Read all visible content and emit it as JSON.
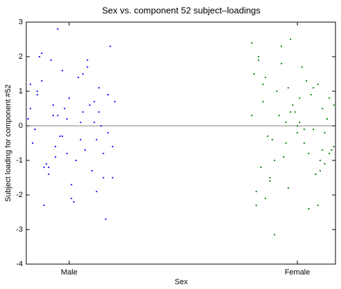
{
  "chart_data": {
    "type": "scatter",
    "title": "Sex vs. component 52 subject–loadings",
    "x_label": "Sex",
    "y_label": "Subject loading for component #52",
    "xlim": [
      0.812,
      2.167
    ],
    "xticks": [
      {
        "value": 1,
        "label": "Male"
      },
      {
        "value": 2,
        "label": "Female"
      }
    ],
    "ylim": [
      -4,
      3
    ],
    "yticks": [
      -4,
      -3,
      -2,
      -1,
      0,
      1,
      2,
      3
    ],
    "hline": 0,
    "series": [
      {
        "color": "#0000ff",
        "x": [
          0.83,
          0.95,
          1.12,
          0.88,
          1.05,
          0.91,
          1.18,
          0.99,
          0.86,
          1.08,
          1.15,
          0.93,
          1.02,
          0.85,
          1.11,
          0.97,
          1.19,
          0.89,
          1.06,
          0.94,
          1.13,
          0.82,
          1.01,
          1.09,
          0.87,
          1.16,
          0.96,
          1.04,
          0.9,
          1.14,
          0.84,
          1.0,
          1.1,
          0.92,
          1.17,
          0.98,
          1.07,
          0.86,
          1.12,
          0.95,
          1.03,
          0.88,
          1.19,
          0.93,
          1.05,
          0.83,
          1.15,
          0.99,
          1.08,
          0.91,
          1.13,
          0.85,
          1.01,
          1.17,
          0.94,
          1.06,
          0.89,
          1.11,
          0.97,
          1.2
        ],
        "values": [
          0.5,
          2.8,
          -0.4,
          1.3,
          0.1,
          -1.2,
          2.3,
          -0.8,
          0.9,
          1.9,
          -1.5,
          0.3,
          -2.2,
          -0.1,
          0.7,
          1.6,
          -0.6,
          -2.3,
          0.4,
          -0.9,
          1.1,
          0.2,
          -1.7,
          0.6,
          2.0,
          -2.7,
          -0.3,
          1.4,
          -1.1,
          0.0,
          -0.5,
          0.8,
          -1.3,
          1.9,
          -0.2,
          0.5,
          -0.7,
          1.0,
          -1.9,
          0.3,
          -1.0,
          2.1,
          -1.5,
          0.6,
          -0.4,
          1.2,
          -0.8,
          0.2,
          1.7,
          -1.4,
          0.4,
          -0.1,
          -2.1,
          0.9,
          -0.6,
          1.5,
          -1.2,
          0.1,
          -0.3,
          0.7
        ]
      },
      {
        "color": "#008000",
        "x": [
          1.8,
          1.92,
          2.05,
          1.85,
          2.12,
          1.97,
          2.16,
          1.88,
          2.01,
          2.09,
          1.83,
          1.95,
          2.14,
          1.9,
          2.03,
          1.81,
          2.1,
          1.99,
          1.86,
          2.07,
          2.15,
          1.93,
          2.0,
          1.84,
          2.11,
          1.96,
          2.04,
          1.89,
          2.13,
          1.82,
          2.06,
          1.94,
          2.02,
          1.87,
          2.08,
          1.98,
          2.16,
          1.91,
          1.8,
          2.05,
          1.93,
          2.12,
          1.85,
          2.0,
          2.09,
          1.88,
          1.97,
          2.14,
          1.83,
          2.03,
          1.95,
          2.1,
          1.86,
          2.07,
          1.9,
          2.01,
          1.82,
          2.13,
          1.96,
          2.11
        ],
        "values": [
          2.4,
          0.3,
          -0.8,
          1.2,
          -0.2,
          2.5,
          0.6,
          -1.5,
          0.1,
          -2.3,
          1.9,
          -0.5,
          0.8,
          -3.15,
          -0.1,
          1.5,
          -1.0,
          0.4,
          -2.1,
          1.1,
          -0.7,
          2.3,
          0.0,
          -1.2,
          0.5,
          -1.8,
          1.3,
          -0.4,
          0.2,
          -2.3,
          0.9,
          -0.9,
          1.7,
          -0.3,
          -1.4,
          0.6,
          -0.6,
          1.0,
          0.3,
          -2.4,
          1.8,
          -1.1,
          0.7,
          -0.2,
          1.2,
          -1.6,
          0.4,
          -0.8,
          2.0,
          -0.5,
          0.1,
          -1.3,
          1.4,
          -0.1,
          -1.0,
          0.8,
          -1.9,
          0.2,
          1.1,
          -0.7
        ]
      }
    ]
  }
}
